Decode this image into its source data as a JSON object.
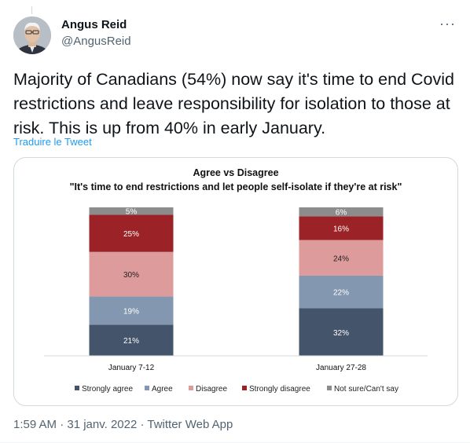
{
  "tweet": {
    "author_name": "Angus Reid",
    "handle": "@AngusReid",
    "text": "Majority of Canadians (54%) now say it's time to end Covid restrictions and leave responsibility for isolation to those at risk. This is up from 40% in early January.",
    "translate_label": "Traduire le Tweet",
    "timestamp": "1:59 AM · 31 janv. 2022 · Twitter Web App",
    "more_icon": "more-horizontal-icon"
  },
  "chart_data": {
    "type": "bar",
    "stacked": true,
    "title": "Agree vs Disagree",
    "subtitle": "\"It's time to end restrictions and let people self-isolate if they're at risk\"",
    "categories": [
      "January 7-12",
      "January 27-28"
    ],
    "series": [
      {
        "name": "Strongly agree",
        "values": [
          21,
          32
        ],
        "labels": [
          "21%",
          "32%"
        ],
        "color": "#44546a",
        "text_color": "#ffffff"
      },
      {
        "name": "Agree",
        "values": [
          19,
          22
        ],
        "labels": [
          "19%",
          "22%"
        ],
        "color": "#8497b0",
        "text_color": "#ffffff"
      },
      {
        "name": "Disagree",
        "values": [
          30,
          24
        ],
        "labels": [
          "30%",
          "24%"
        ],
        "color": "#de9b9b",
        "text_color": "#222222"
      },
      {
        "name": "Strongly disagree",
        "values": [
          25,
          16
        ],
        "labels": [
          "25%",
          "16%"
        ],
        "color": "#9b2226",
        "text_color": "#ffffff"
      },
      {
        "name": "Not sure/Can't say",
        "values": [
          5,
          6
        ],
        "labels": [
          "5%",
          "6%"
        ],
        "color": "#8c8c8c",
        "text_color": "#ffffff"
      }
    ],
    "ylim": [
      0,
      100
    ],
    "legend_position": "bottom",
    "grid": false
  }
}
